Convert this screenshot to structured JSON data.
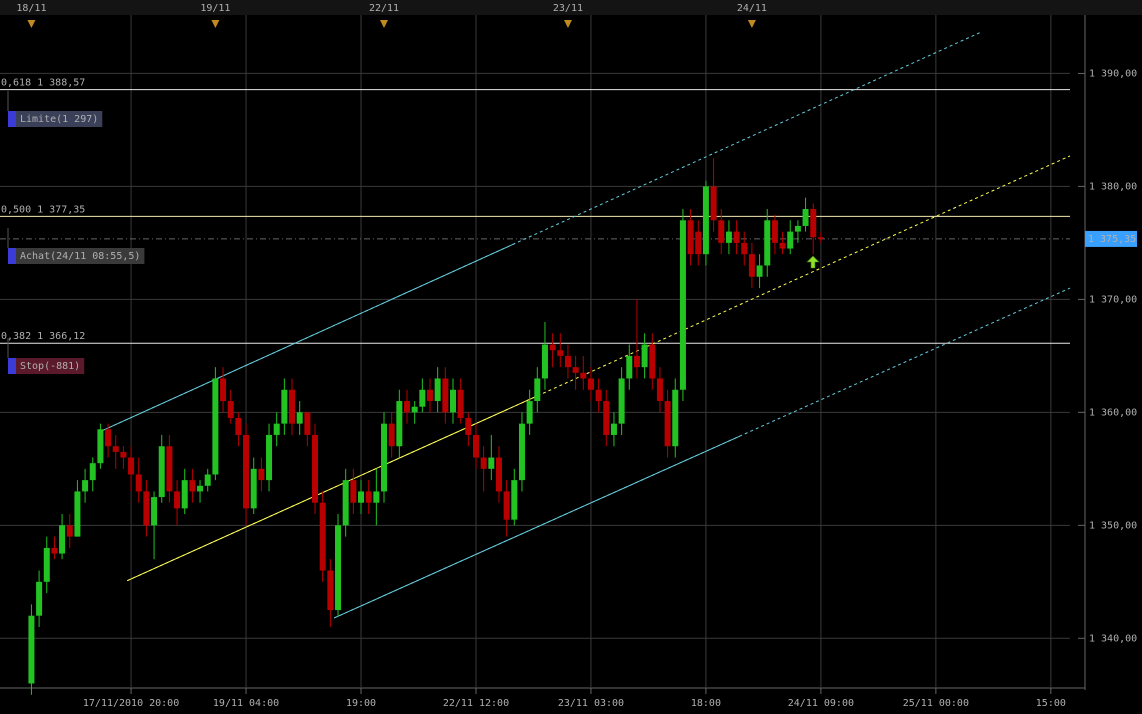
{
  "chart_data": {
    "type": "candlestick",
    "x": [
      -13,
      -12,
      -11,
      -10,
      -9,
      -8,
      -7,
      -6,
      -5,
      -4,
      -3,
      -2,
      -1,
      0,
      1,
      2,
      3,
      4,
      5,
      6,
      7,
      8,
      9,
      10,
      11,
      12,
      13,
      14,
      15,
      16,
      17,
      18,
      19,
      20,
      21,
      22,
      23,
      24,
      25,
      26,
      27,
      28,
      29,
      30,
      31,
      32,
      33,
      34,
      35,
      36,
      37,
      38,
      39,
      40,
      41,
      42,
      43,
      44,
      45,
      46,
      47,
      48,
      49,
      50,
      51,
      52,
      53,
      54,
      55,
      56,
      57,
      58,
      59,
      60,
      61,
      62,
      63,
      64,
      65,
      66,
      67,
      68,
      69,
      70,
      71,
      72,
      73,
      74,
      75,
      76,
      77,
      78,
      79,
      80,
      81,
      82,
      83,
      84,
      85,
      86,
      87,
      88,
      89,
      90
    ],
    "open": [
      1336,
      1342,
      1345,
      1348,
      1347.5,
      1350,
      1349,
      1353,
      1354,
      1355.5,
      1358.5,
      1357,
      1356.5,
      1356,
      1354.5,
      1353,
      1350,
      1352.5,
      1357,
      1353,
      1351.5,
      1354,
      1353,
      1353.5,
      1354.5,
      1363,
      1361,
      1359.5,
      1358,
      1351.5,
      1355,
      1354,
      1358,
      1359,
      1362,
      1359,
      1360,
      1358,
      1352,
      1346,
      1342.5,
      1350,
      1354,
      1352,
      1353,
      1352,
      1353,
      1359,
      1357,
      1361,
      1360,
      1360.5,
      1362,
      1361,
      1363,
      1360,
      1362,
      1359.5,
      1358,
      1356,
      1355,
      1356,
      1353,
      1350.5,
      1354,
      1359,
      1361,
      1363,
      1366,
      1365.5,
      1365,
      1364,
      1363.5,
      1363,
      1362,
      1361,
      1358,
      1359,
      1363,
      1365,
      1364,
      1366,
      1363,
      1361,
      1357,
      1362,
      1377,
      1376,
      1374,
      1380,
      1377,
      1375,
      1376,
      1375,
      1374,
      1372,
      1373,
      1377,
      1375,
      1374.5,
      1376,
      1376.5,
      1378,
      1375.5
    ],
    "high": [
      1343,
      1346,
      1349,
      1349,
      1351,
      1351,
      1354,
      1355,
      1356,
      1359,
      1359,
      1358,
      1357,
      1357,
      1356,
      1354,
      1353,
      1358,
      1358,
      1354,
      1355,
      1355,
      1354,
      1355,
      1364,
      1364,
      1362,
      1360,
      1359,
      1356,
      1356,
      1359,
      1360,
      1363,
      1363,
      1361,
      1360,
      1359,
      1353,
      1347,
      1351,
      1355,
      1355,
      1354,
      1354,
      1355,
      1360,
      1360,
      1362,
      1362,
      1361,
      1363,
      1363,
      1364,
      1364,
      1363,
      1363,
      1360,
      1359,
      1357,
      1358,
      1357,
      1354,
      1355,
      1360,
      1362,
      1364,
      1368,
      1367,
      1367,
      1366,
      1365,
      1365,
      1364,
      1363,
      1362,
      1360,
      1364,
      1366,
      1370,
      1367,
      1367,
      1364,
      1362,
      1363,
      1378,
      1378,
      1377,
      1380.5,
      1382.5,
      1378,
      1377,
      1377,
      1376,
      1375,
      1374,
      1378,
      1377.5,
      1376,
      1377,
      1377,
      1379,
      1378.5,
      1376
    ],
    "low": [
      1335,
      1341,
      1344,
      1347,
      1347,
      1348,
      1349,
      1352,
      1353,
      1355,
      1356,
      1355,
      1355,
      1353,
      1352,
      1349,
      1347,
      1352,
      1352,
      1350,
      1351,
      1352,
      1352,
      1353,
      1354,
      1360,
      1359,
      1357,
      1350,
      1351,
      1353,
      1353,
      1357,
      1358,
      1358,
      1358,
      1357,
      1351,
      1345,
      1341,
      1342,
      1349,
      1351,
      1351,
      1351,
      1350,
      1352,
      1356,
      1356,
      1359,
      1359,
      1360,
      1360,
      1360,
      1359,
      1359,
      1359,
      1357,
      1355,
      1353,
      1354,
      1352,
      1349,
      1350,
      1353,
      1358,
      1360,
      1362,
      1364,
      1364,
      1363,
      1362,
      1362,
      1361,
      1360,
      1357,
      1357,
      1358,
      1362,
      1363,
      1363,
      1362,
      1360,
      1356,
      1356,
      1361,
      1373,
      1373,
      1373,
      1376,
      1374,
      1374,
      1374,
      1373,
      1371,
      1371,
      1372,
      1374,
      1374,
      1374,
      1375,
      1376,
      1374,
      1375
    ],
    "close": [
      1342,
      1345,
      1348,
      1347.5,
      1350,
      1349,
      1353,
      1354,
      1355.5,
      1358.5,
      1357,
      1356.5,
      1356,
      1354.5,
      1353,
      1350,
      1352.5,
      1357,
      1353,
      1351.5,
      1354,
      1353,
      1353.5,
      1354.5,
      1363,
      1361,
      1359.5,
      1358,
      1351.5,
      1355,
      1354,
      1358,
      1359,
      1362,
      1359,
      1360,
      1358,
      1352,
      1346,
      1342.5,
      1350,
      1354,
      1352,
      1353,
      1352,
      1353,
      1359,
      1357,
      1361,
      1360,
      1360.5,
      1362,
      1361,
      1363,
      1360,
      1362,
      1359.5,
      1358,
      1356,
      1355,
      1356,
      1353,
      1350.5,
      1354,
      1359,
      1361,
      1363,
      1366,
      1365.5,
      1365,
      1364,
      1363.5,
      1363,
      1362,
      1361,
      1358,
      1359,
      1363,
      1365,
      1364,
      1366,
      1363,
      1361,
      1357,
      1362,
      1377,
      1374,
      1374,
      1380,
      1377,
      1375,
      1376,
      1375,
      1374,
      1372,
      1373,
      1377,
      1375,
      1374.5,
      1376,
      1376.5,
      1378,
      1375.5,
      1375.35
    ],
    "up_color": "#22c322",
    "down_color": "#b80000",
    "xlim": [
      -17.1,
      122.5
    ],
    "ylim": [
      1335.6,
      1396.5
    ],
    "xticks": [
      {
        "value": 0,
        "label": "17/11/2010 20:00"
      },
      {
        "value": 15,
        "label": "19/11 04:00"
      },
      {
        "value": 30,
        "label": "19:00"
      },
      {
        "value": 45,
        "label": "22/11 12:00"
      },
      {
        "value": 60,
        "label": "23/11 03:00"
      },
      {
        "value": 75,
        "label": "18:00"
      },
      {
        "value": 90,
        "label": "24/11 09:00"
      },
      {
        "value": 105,
        "label": "25/11 00:00"
      },
      {
        "value": 120,
        "label": "15:00"
      }
    ],
    "day_markers": [
      {
        "value": -13,
        "label": "18/11"
      },
      {
        "value": 11,
        "label": "19/11"
      },
      {
        "value": 33,
        "label": "22/11"
      },
      {
        "value": 57,
        "label": "23/11"
      },
      {
        "value": 81,
        "label": "24/11"
      }
    ],
    "yticks": [
      {
        "value": 1340,
        "label": "1 340,00"
      },
      {
        "value": 1350,
        "label": "1 350,00"
      },
      {
        "value": 1360,
        "label": "1 360,00"
      },
      {
        "value": 1370,
        "label": "1 370,00"
      },
      {
        "value": 1380,
        "label": "1 380,00"
      },
      {
        "value": 1390,
        "label": "1 390,00"
      }
    ],
    "grid": true,
    "levels": [
      {
        "value": 1388.57,
        "label": "0,618 1 388,57",
        "color": "#e8e8e8"
      },
      {
        "value": 1377.35,
        "label": "0,500 1 377,35",
        "color": "#f4e8b0"
      },
      {
        "value": 1366.12,
        "label": "0,382 1 366,12",
        "color": "#e8e8e8"
      }
    ],
    "current_price": {
      "value": 1375.35,
      "label": "1 375,35",
      "color": "#3aa0ff"
    },
    "channels": [
      {
        "x": [
          -0.5,
          122.5
        ],
        "y": [
          1345.1,
          1382.7
        ],
        "color": "#ffff55"
      },
      {
        "x": [
          -3.7,
          110.7
        ],
        "y": [
          1358.4,
          1393.6
        ],
        "color": "#66ccdd"
      },
      {
        "x": [
          26.5,
          122.5
        ],
        "y": [
          1341.8,
          1371.0
        ],
        "color": "#66ccdd"
      }
    ],
    "orders": [
      {
        "label": "Limite(1 297)",
        "color": "#3a4058"
      },
      {
        "label": "Achat(24/11 08:55,5)",
        "color": "#3a3a3a"
      },
      {
        "label": "Stop(-881)",
        "color": "#5a1a2c"
      }
    ]
  }
}
